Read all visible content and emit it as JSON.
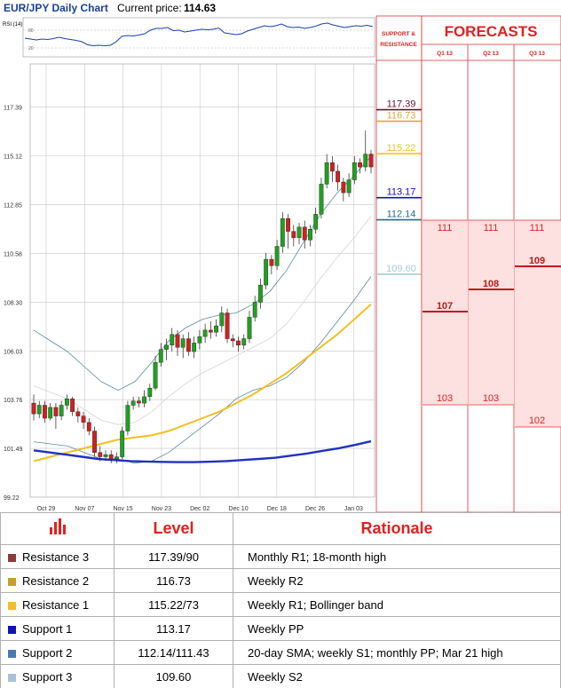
{
  "header": {
    "title": "EUR/JPY Daily Chart",
    "price_label": "Current price:",
    "price_value": "114.63"
  },
  "rsi_label": "RSI (14)",
  "rsi_ticks": [
    "80",
    "20"
  ],
  "side_header": {
    "support_resistance": [
      "SUPPORT &",
      "RESISTANCE"
    ],
    "forecasts": "FORECASTS",
    "quarters": [
      "Q1 13",
      "Q2 13",
      "Q3 13"
    ]
  },
  "chart_data": {
    "type": "candlestick",
    "title": "EUR/JPY Daily Chart",
    "ylim": [
      99.22,
      119.4
    ],
    "y_ticks": [
      "117.39",
      "115.12",
      "112.85",
      "110.58",
      "108.30",
      "106.03",
      "103.76",
      "101.49",
      "99.22"
    ],
    "x_ticks": [
      "Oct 29",
      "Nov 07",
      "Nov 15",
      "Nov 23",
      "Dec 02",
      "Dec 10",
      "Dec 18",
      "Dec 26",
      "Jan 03"
    ],
    "levels": [
      {
        "label": "117.39",
        "value": 117.39,
        "color": "#5a1a2a"
      },
      {
        "label": "116.73",
        "value": 116.73,
        "color": "#d8a840"
      },
      {
        "label": "115.22",
        "value": 115.22,
        "color": "#f0c020"
      },
      {
        "label": "113.17",
        "value": 113.17,
        "color": "#1010c0"
      },
      {
        "label": "112.14",
        "value": 112.14,
        "color": "#2a6a8a"
      },
      {
        "label": "109.60",
        "value": 109.6,
        "color": "#a8ccd0"
      }
    ],
    "candles": [
      [
        103.6,
        103.1,
        104.0,
        102.8
      ],
      [
        103.1,
        103.5,
        103.7,
        102.9
      ],
      [
        103.5,
        102.9,
        103.7,
        102.7
      ],
      [
        102.9,
        103.4,
        103.6,
        102.8
      ],
      [
        103.4,
        103.0,
        103.6,
        102.4
      ],
      [
        103.0,
        103.5,
        103.7,
        102.8
      ],
      [
        103.5,
        103.8,
        104.0,
        103.3
      ],
      [
        103.8,
        103.2,
        103.9,
        103.0
      ],
      [
        103.2,
        103.0,
        103.4,
        102.7
      ],
      [
        103.0,
        102.7,
        103.2,
        102.4
      ],
      [
        102.7,
        102.3,
        102.9,
        102.1
      ],
      [
        102.3,
        101.3,
        102.5,
        101.1
      ],
      [
        101.3,
        101.1,
        101.6,
        100.9
      ],
      [
        101.1,
        101.2,
        101.4,
        100.9
      ],
      [
        101.2,
        101.0,
        101.4,
        100.8
      ],
      [
        101.0,
        101.1,
        101.3,
        100.8
      ],
      [
        101.1,
        102.3,
        102.5,
        101.0
      ],
      [
        102.3,
        103.5,
        103.7,
        102.1
      ],
      [
        103.5,
        103.7,
        103.9,
        103.3
      ],
      [
        103.7,
        103.6,
        103.9,
        103.4
      ],
      [
        103.6,
        103.9,
        104.2,
        103.4
      ],
      [
        103.9,
        104.3,
        104.5,
        103.7
      ],
      [
        104.3,
        105.5,
        105.8,
        104.2
      ],
      [
        105.5,
        106.1,
        106.4,
        105.3
      ],
      [
        106.1,
        106.3,
        106.6,
        105.6
      ],
      [
        106.3,
        106.8,
        107.1,
        106.0
      ],
      [
        106.8,
        106.2,
        107.0,
        105.8
      ],
      [
        106.2,
        106.6,
        106.8,
        105.7
      ],
      [
        106.6,
        106.0,
        106.9,
        105.8
      ],
      [
        106.0,
        106.4,
        106.7,
        105.7
      ],
      [
        106.4,
        106.7,
        107.0,
        106.1
      ],
      [
        106.7,
        107.0,
        107.3,
        106.4
      ],
      [
        107.0,
        106.9,
        107.4,
        106.6
      ],
      [
        106.9,
        107.2,
        107.5,
        106.7
      ],
      [
        107.2,
        107.8,
        108.1,
        106.9
      ],
      [
        107.8,
        106.6,
        108.0,
        106.4
      ],
      [
        106.6,
        106.5,
        106.8,
        106.2
      ],
      [
        106.5,
        106.3,
        106.7,
        106.0
      ],
      [
        106.3,
        106.6,
        106.8,
        106.1
      ],
      [
        106.6,
        107.6,
        107.9,
        106.4
      ],
      [
        107.6,
        108.3,
        108.6,
        107.4
      ],
      [
        108.3,
        109.1,
        109.4,
        108.0
      ],
      [
        109.1,
        110.3,
        110.6,
        108.9
      ],
      [
        110.3,
        110.0,
        110.5,
        109.6
      ],
      [
        110.0,
        110.9,
        111.2,
        109.8
      ],
      [
        110.9,
        112.2,
        112.5,
        110.6
      ],
      [
        112.2,
        111.6,
        112.4,
        110.8
      ],
      [
        111.6,
        111.3,
        111.9,
        110.9
      ],
      [
        111.3,
        111.8,
        112.0,
        111.0
      ],
      [
        111.8,
        111.2,
        112.1,
        110.8
      ],
      [
        111.2,
        111.7,
        111.9,
        110.9
      ],
      [
        111.7,
        112.4,
        112.7,
        111.5
      ],
      [
        112.4,
        113.8,
        114.1,
        112.2
      ],
      [
        113.8,
        114.8,
        115.2,
        113.6
      ],
      [
        114.8,
        114.4,
        115.1,
        113.9
      ],
      [
        114.4,
        113.9,
        114.7,
        113.5
      ],
      [
        113.9,
        113.4,
        114.1,
        113.0
      ],
      [
        113.4,
        114.0,
        114.3,
        113.2
      ],
      [
        114.0,
        114.8,
        115.1,
        113.8
      ],
      [
        114.8,
        114.6,
        115.0,
        114.3
      ],
      [
        114.6,
        115.2,
        116.3,
        114.4
      ],
      [
        115.2,
        114.6,
        115.4,
        114.3
      ]
    ],
    "rsi": [
      48,
      46,
      44,
      46,
      45,
      47,
      50,
      47,
      45,
      43,
      40,
      33,
      31,
      32,
      31,
      32,
      40,
      52,
      54,
      53,
      55,
      58,
      66,
      70,
      70,
      72,
      65,
      66,
      62,
      64,
      66,
      68,
      67,
      68,
      71,
      60,
      58,
      56,
      58,
      64,
      68,
      72,
      76,
      74,
      76,
      80,
      74,
      72,
      73,
      70,
      72,
      75,
      80,
      82,
      78,
      75,
      72,
      74,
      76,
      75,
      77,
      74
    ],
    "sma200": [
      101.4,
      101.3,
      101.2,
      101.1,
      101.0,
      100.95,
      100.9,
      100.88,
      100.86,
      100.85,
      100.85,
      100.87,
      100.9,
      100.95,
      101.0,
      101.05,
      101.15,
      101.25,
      101.38,
      101.5,
      101.65,
      101.82
    ],
    "sma50": [
      100.9,
      101.1,
      101.3,
      101.5,
      101.7,
      101.9,
      102.0,
      102.1,
      102.3,
      102.6,
      102.9,
      103.2,
      103.6,
      104.0,
      104.5,
      105.0,
      105.6,
      106.2,
      106.8,
      107.5,
      108.2
    ],
    "sma20": [
      104.4,
      104.1,
      103.8,
      103.3,
      102.8,
      102.6,
      102.7,
      103.2,
      103.9,
      104.5,
      105.0,
      105.4,
      105.8,
      106.2,
      106.6,
      107.3,
      108.3,
      109.4,
      110.4,
      111.3,
      112.3
    ]
  },
  "forecasts": {
    "q1_top": "111",
    "q1_mid": "107",
    "q1_bot": "103",
    "q2_top": "111",
    "q2_mid": "108",
    "q2_bot": "103",
    "q3_top": "111",
    "q3_mid": "109",
    "q3_bot": "102"
  },
  "table": {
    "header_level": "Level",
    "header_rationale": "Rationale",
    "rows": [
      {
        "name": "Resistance 3",
        "level": "117.39/90",
        "rationale": "Monthly R1; 18-month high",
        "color": "#8b3a3a"
      },
      {
        "name": "Resistance 2",
        "level": "116.73",
        "rationale": "Weekly R2",
        "color": "#c8a020"
      },
      {
        "name": "Resistance 1",
        "level": "115.22/73",
        "rationale": "Weekly R1; Bollinger band",
        "color": "#f0c020"
      },
      {
        "name": "Support 1",
        "level": "113.17",
        "rationale": "Weekly PP",
        "color": "#1010c0"
      },
      {
        "name": "Support 2",
        "level": "112.14/111.43",
        "rationale": "20-day SMA; weekly S1; monthly PP; Mar 21 high",
        "color": "#4a7ab0"
      },
      {
        "name": "Support 3",
        "level": "109.60",
        "rationale": "Weekly S2",
        "color": "#a8c0d8"
      }
    ]
  }
}
